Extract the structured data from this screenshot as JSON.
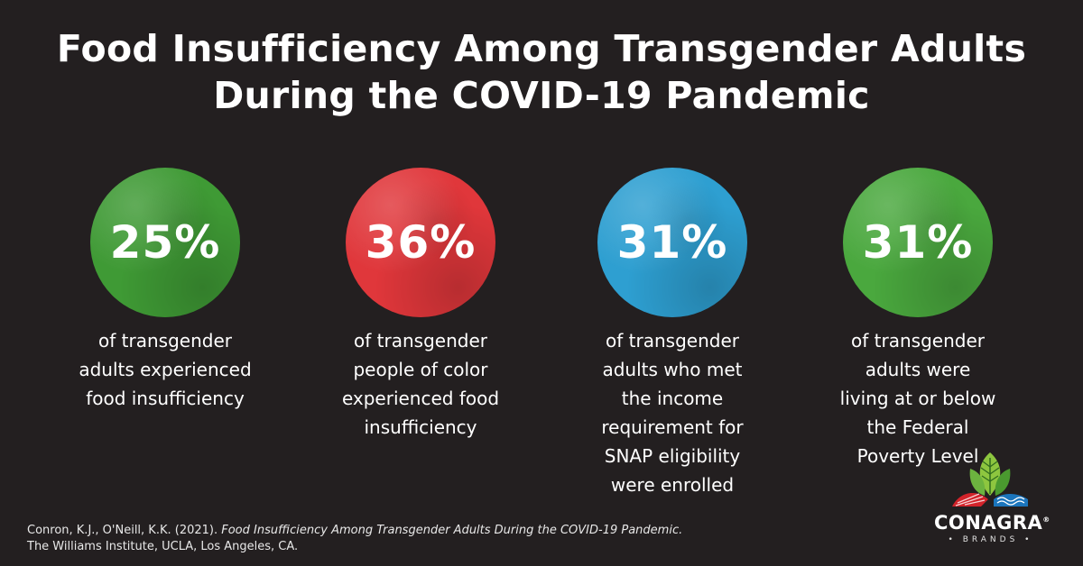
{
  "title": {
    "line1": "Food Insufficiency Among Transgender Adults",
    "line2": "During the COVID-19 Pandemic"
  },
  "stats": [
    {
      "value": "25%",
      "color": "#3f9a35",
      "lines": [
        "of transgender",
        "adults experienced",
        "food insufficiency"
      ]
    },
    {
      "value": "36%",
      "color": "#e0373b",
      "lines": [
        "of transgender",
        "people of color",
        "experienced food",
        "insufficiency"
      ]
    },
    {
      "value": "31%",
      "color": "#2e9fd1",
      "lines": [
        "of transgender",
        "adults who met",
        "the income",
        "requirement for",
        "SNAP eligibility",
        "were enrolled"
      ]
    },
    {
      "value": "31%",
      "color": "#4aa83e",
      "lines": [
        "of transgender",
        "adults were",
        "living at or below",
        "the Federal",
        "Poverty Level"
      ]
    }
  ],
  "citation": {
    "authors": "Conron, K.J., O'Neill, K.K. (2021). ",
    "work": "Food Insufficiency Among Transgender Adults During the COVID-19 Pandemic.",
    "publisher": "The Williams Institute, UCLA, Los Angeles, CA."
  },
  "logo": {
    "name": "CONAGRA",
    "trademark": "®",
    "tagline": "• BRANDS •"
  }
}
